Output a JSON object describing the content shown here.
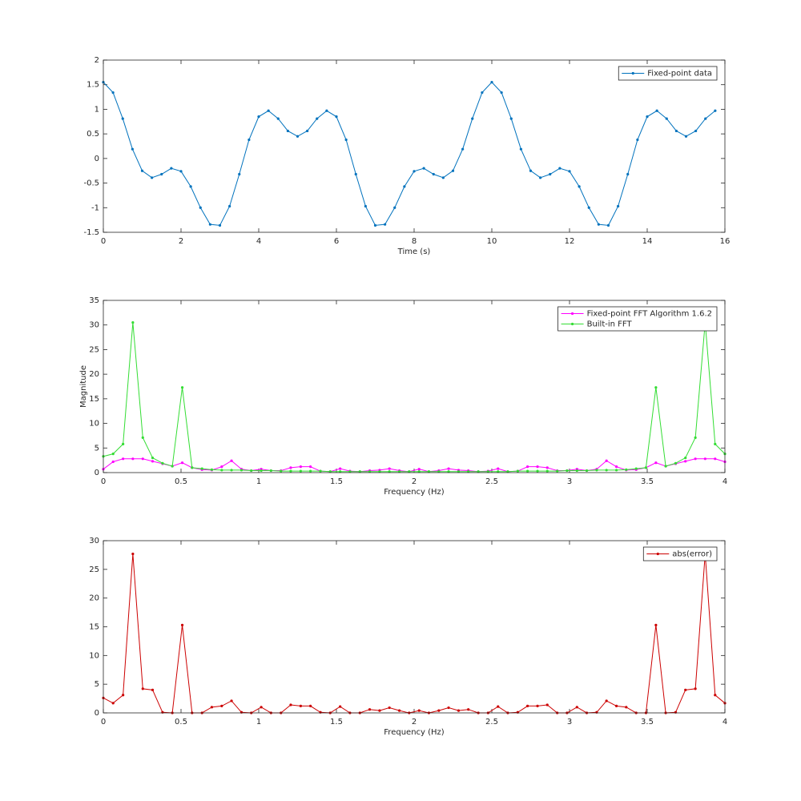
{
  "chart_data": [
    {
      "type": "line",
      "xlabel": "Time (s)",
      "legend": "northeast",
      "x": [
        0,
        0.25,
        0.5,
        0.75,
        1,
        1.25,
        1.5,
        1.75,
        2,
        2.25,
        2.5,
        2.75,
        3,
        3.25,
        3.5,
        3.75,
        4,
        4.25,
        4.5,
        4.75,
        5,
        5.25,
        5.5,
        5.75,
        6,
        6.25,
        6.5,
        6.75,
        7,
        7.25,
        7.5,
        7.75,
        8,
        8.25,
        8.5,
        8.75,
        9,
        9.25,
        9.5,
        9.75,
        10,
        10.25,
        10.5,
        10.75,
        11,
        11.25,
        11.5,
        11.75,
        12,
        12.25,
        12.5,
        12.75,
        13,
        13.25,
        13.5,
        13.75,
        14,
        14.25,
        14.5,
        14.75,
        15,
        15.25,
        15.5,
        15.75
      ],
      "series": [
        {
          "name": "Fixed-point data",
          "color": "#0072bd",
          "values": [
            1.55,
            1.34,
            0.81,
            0.19,
            -0.25,
            -0.39,
            -0.32,
            -0.2,
            -0.26,
            -0.57,
            -1.0,
            -1.34,
            -1.36,
            -0.97,
            -0.32,
            0.38,
            0.85,
            0.97,
            0.81,
            0.56,
            0.45,
            0.56,
            0.81,
            0.97,
            0.85,
            0.38,
            -0.32,
            -0.97,
            -1.36,
            -1.34,
            -1.0,
            -0.57,
            -0.26,
            -0.2,
            -0.32,
            -0.39,
            -0.25,
            0.19,
            0.81,
            1.34,
            1.55,
            1.34,
            0.81,
            0.19,
            -0.25,
            -0.39,
            -0.32,
            -0.2,
            -0.26,
            -0.57,
            -1.0,
            -1.34,
            -1.36,
            -0.97,
            -0.32,
            0.38,
            0.85,
            0.97,
            0.81,
            0.56,
            0.45,
            0.56,
            0.81,
            0.97
          ]
        }
      ],
      "xlim": [
        0,
        16
      ],
      "xticks": [
        0,
        2,
        4,
        6,
        8,
        10,
        12,
        14,
        16
      ],
      "ylim": [
        -1.5,
        2
      ],
      "yticks": [
        -1.5,
        -1,
        -0.5,
        0,
        0.5,
        1,
        1.5,
        2
      ]
    },
    {
      "type": "line",
      "xlabel": "Frequency (Hz)",
      "ylabel": "Magnitude",
      "legend": "northeast",
      "x": [
        0,
        0.063,
        0.127,
        0.19,
        0.254,
        0.317,
        0.381,
        0.444,
        0.508,
        0.571,
        0.635,
        0.698,
        0.762,
        0.825,
        0.889,
        0.952,
        1.016,
        1.079,
        1.143,
        1.206,
        1.27,
        1.333,
        1.397,
        1.46,
        1.524,
        1.587,
        1.651,
        1.714,
        1.778,
        1.841,
        1.905,
        1.968,
        2.032,
        2.095,
        2.159,
        2.222,
        2.286,
        2.349,
        2.413,
        2.476,
        2.54,
        2.603,
        2.667,
        2.73,
        2.794,
        2.857,
        2.921,
        2.984,
        3.048,
        3.111,
        3.175,
        3.238,
        3.302,
        3.365,
        3.429,
        3.492,
        3.556,
        3.619,
        3.683,
        3.746,
        3.81,
        3.873,
        3.937,
        4
      ],
      "series": [
        {
          "name": "Fixed-point FFT Algorithm 1.6.2",
          "color": "#ff00ff",
          "values": [
            0.7,
            2.2,
            2.8,
            2.8,
            2.8,
            2.3,
            1.8,
            1.3,
            2.0,
            1.0,
            0.6,
            0.5,
            1.2,
            2.4,
            0.7,
            0.4,
            0.7,
            0.4,
            0.4,
            1.0,
            1.2,
            1.2,
            0.3,
            0.2,
            0.8,
            0.3,
            0.2,
            0.4,
            0.5,
            0.8,
            0.4,
            0.2,
            0.7,
            0.2,
            0.4,
            0.8,
            0.5,
            0.4,
            0.2,
            0.3,
            0.8,
            0.2,
            0.3,
            1.2,
            1.2,
            1.0,
            0.4,
            0.4,
            0.7,
            0.4,
            0.7,
            2.4,
            1.2,
            0.5,
            0.6,
            1.0,
            2.0,
            1.3,
            1.8,
            2.3,
            2.8,
            2.8,
            2.8,
            2.2
          ]
        },
        {
          "name": "Built-in FFT",
          "color": "#33dd33",
          "values": [
            3.3,
            3.8,
            5.8,
            30.5,
            7.1,
            3.0,
            1.9,
            1.3,
            17.3,
            1.0,
            0.8,
            0.6,
            0.5,
            0.5,
            0.5,
            0.4,
            0.4,
            0.4,
            0.3,
            0.3,
            0.3,
            0.3,
            0.3,
            0.2,
            0.2,
            0.2,
            0.2,
            0.2,
            0.2,
            0.2,
            0.2,
            0.2,
            0.2,
            0.2,
            0.2,
            0.2,
            0.2,
            0.2,
            0.2,
            0.2,
            0.2,
            0.2,
            0.3,
            0.3,
            0.3,
            0.3,
            0.3,
            0.4,
            0.4,
            0.4,
            0.5,
            0.5,
            0.5,
            0.6,
            0.8,
            1.0,
            17.3,
            1.3,
            1.9,
            3.0,
            7.1,
            30.5,
            5.8,
            3.8
          ]
        }
      ],
      "xlim": [
        0,
        4
      ],
      "xticks": [
        0,
        0.5,
        1,
        1.5,
        2,
        2.5,
        3,
        3.5,
        4
      ],
      "ylim": [
        0,
        35
      ],
      "yticks": [
        0,
        5,
        10,
        15,
        20,
        25,
        30,
        35
      ]
    },
    {
      "type": "line",
      "xlabel": "Frequency (Hz)",
      "legend": "northeast",
      "x": [
        0,
        0.063,
        0.127,
        0.19,
        0.254,
        0.317,
        0.381,
        0.444,
        0.508,
        0.571,
        0.635,
        0.698,
        0.762,
        0.825,
        0.889,
        0.952,
        1.016,
        1.079,
        1.143,
        1.206,
        1.27,
        1.333,
        1.397,
        1.46,
        1.524,
        1.587,
        1.651,
        1.714,
        1.778,
        1.841,
        1.905,
        1.968,
        2.032,
        2.095,
        2.159,
        2.222,
        2.286,
        2.349,
        2.413,
        2.476,
        2.54,
        2.603,
        2.667,
        2.73,
        2.794,
        2.857,
        2.921,
        2.984,
        3.048,
        3.111,
        3.175,
        3.238,
        3.302,
        3.365,
        3.429,
        3.492,
        3.556,
        3.619,
        3.683,
        3.746,
        3.81,
        3.873,
        3.937,
        4
      ],
      "series": [
        {
          "name": "abs(error)",
          "color": "#cc0000",
          "values": [
            2.6,
            1.7,
            3.1,
            27.7,
            4.2,
            4.0,
            0.1,
            0,
            15.3,
            0,
            0,
            1.0,
            1.2,
            2.1,
            0.1,
            0,
            1.0,
            0,
            0,
            1.4,
            1.2,
            1.2,
            0.1,
            0,
            1.1,
            0,
            0,
            0.6,
            0.4,
            0.9,
            0.4,
            0,
            0.4,
            0,
            0.4,
            0.9,
            0.4,
            0.6,
            0,
            0,
            1.1,
            0,
            0.1,
            1.2,
            1.2,
            1.4,
            0,
            0,
            1.0,
            0,
            0.1,
            2.1,
            1.2,
            1.0,
            0,
            0,
            15.3,
            0,
            0.1,
            4.0,
            4.2,
            27.7,
            3.1,
            1.7
          ]
        }
      ],
      "xlim": [
        0,
        4
      ],
      "xticks": [
        0,
        0.5,
        1,
        1.5,
        2,
        2.5,
        3,
        3.5,
        4
      ],
      "ylim": [
        0,
        30
      ],
      "yticks": [
        0,
        5,
        10,
        15,
        20,
        25,
        30
      ]
    }
  ]
}
